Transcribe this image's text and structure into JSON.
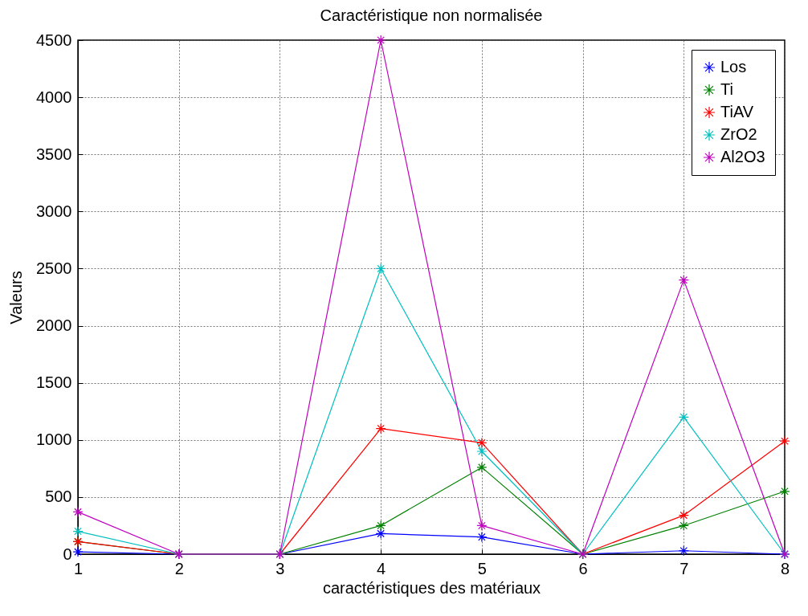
{
  "chart_data": {
    "type": "line",
    "title": "Caractéristique non normalisée",
    "xlabel": "caractéristiques des matériaux",
    "ylabel": "Valeurs",
    "x": [
      1,
      2,
      3,
      4,
      5,
      6,
      7,
      8
    ],
    "series": [
      {
        "name": "Los",
        "color": "#0000ff",
        "values": [
          20,
          0,
          0,
          180,
          150,
          0,
          30,
          0
        ]
      },
      {
        "name": "Ti",
        "color": "#008000",
        "values": [
          110,
          0,
          0,
          250,
          760,
          0,
          250,
          550
        ]
      },
      {
        "name": "TiAV",
        "color": "#ff0000",
        "values": [
          110,
          0,
          0,
          1100,
          975,
          0,
          340,
          990
        ]
      },
      {
        "name": "ZrO2",
        "color": "#00bfbf",
        "values": [
          200,
          0,
          0,
          2500,
          900,
          0,
          1200,
          0
        ]
      },
      {
        "name": "Al2O3",
        "color": "#bf00bf",
        "values": [
          370,
          0,
          0,
          4500,
          250,
          0,
          2400,
          0
        ]
      }
    ],
    "xlim": [
      1,
      8
    ],
    "xticks": [
      1,
      2,
      3,
      4,
      5,
      6,
      7,
      8
    ],
    "ylim": [
      0,
      4500
    ],
    "yticks": [
      0,
      500,
      1000,
      1500,
      2000,
      2500,
      3000,
      3500,
      4000,
      4500
    ],
    "grid": true,
    "legend": "top right",
    "marker": "cross"
  }
}
